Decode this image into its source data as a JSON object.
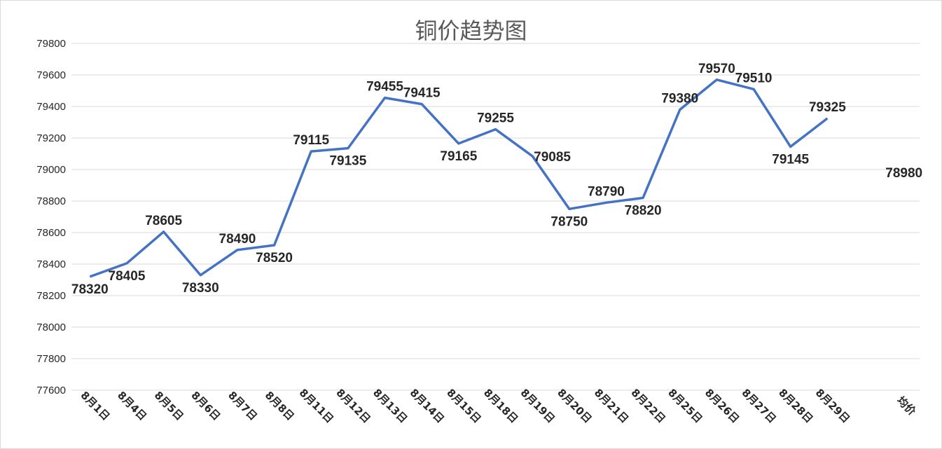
{
  "chart_data": {
    "type": "line",
    "title": "铜价趋势图",
    "xlabel": "",
    "ylabel": "",
    "ylim": [
      77600,
      79800
    ],
    "ytick_step": 200,
    "grid": true,
    "legend": "none",
    "line_color": "#4472c4",
    "categories": [
      "8月1日",
      "8月4日",
      "8月5日",
      "8月6日",
      "8月7日",
      "8月8日",
      "8月11日",
      "8月12日",
      "8月13日",
      "8月14日",
      "8月15日",
      "8月18日",
      "8月19日",
      "8月20日",
      "8月21日",
      "8月22日",
      "8月25日",
      "8月26日",
      "8月27日",
      "8月28日",
      "8月29日",
      "",
      "均价"
    ],
    "values": [
      78320,
      78405,
      78605,
      78330,
      78490,
      78520,
      79115,
      79135,
      79455,
      79415,
      79165,
      79255,
      79085,
      78750,
      78790,
      78820,
      79380,
      79570,
      79510,
      79145,
      79325,
      null,
      null
    ],
    "average_label": "78980",
    "data_label_positions": [
      "below",
      "below",
      "above",
      "below",
      "above",
      "below",
      "above",
      "below",
      "above",
      "above",
      "below",
      "above",
      "right",
      "below",
      "above",
      "below",
      "above",
      "above",
      "above",
      "below",
      "above"
    ]
  }
}
